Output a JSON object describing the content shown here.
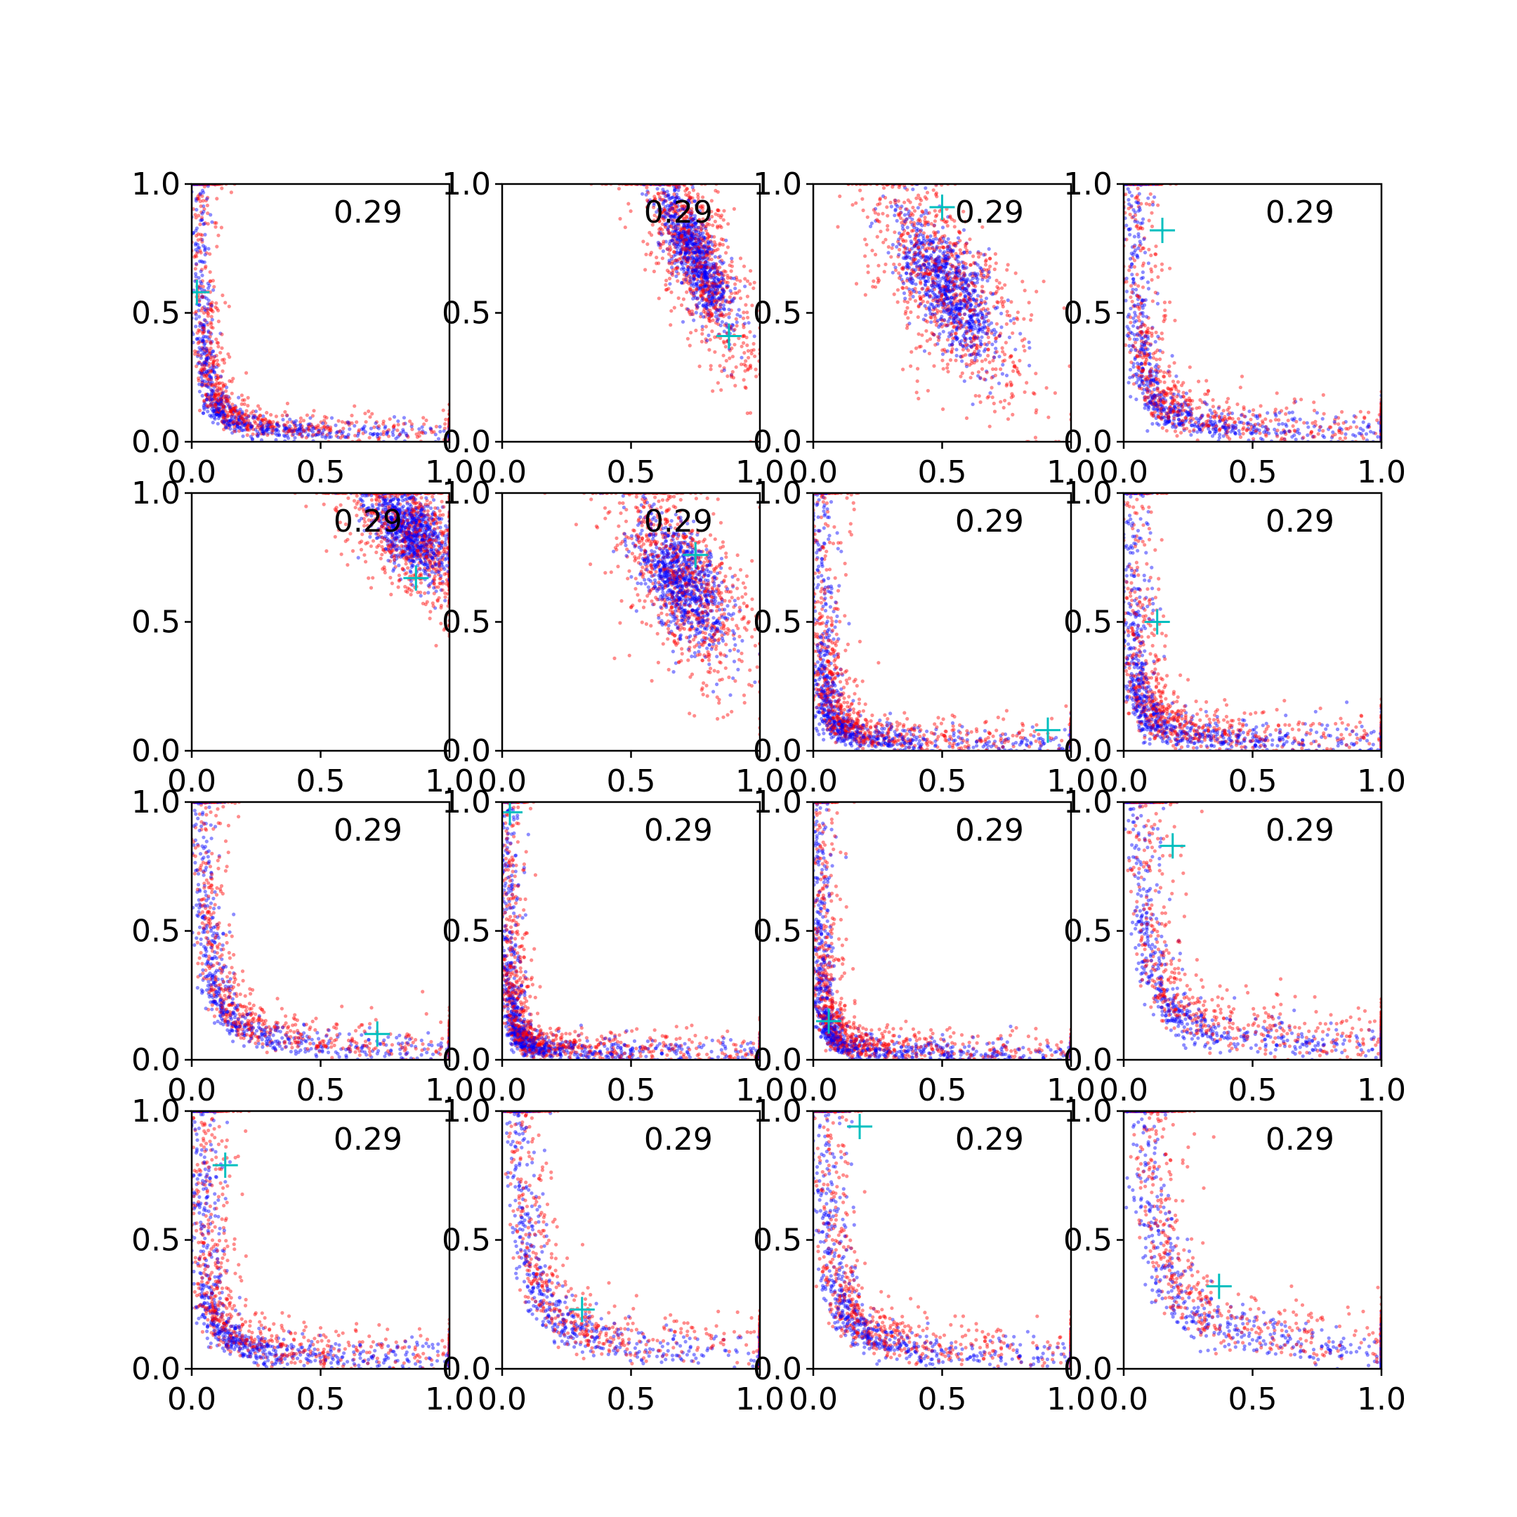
{
  "chart_data": {
    "type": "scatter",
    "layout": {
      "rows": 4,
      "cols": 4
    },
    "xlim": [
      0,
      1
    ],
    "ylim": [
      0,
      1
    ],
    "xticks": [
      "0.0",
      "0.5",
      "1.0"
    ],
    "yticks": [
      "0.0",
      "0.5",
      "1.0"
    ],
    "colors": {
      "series_a": "#0000ff",
      "series_b": "#ff0000",
      "marker": "#00bfbf"
    },
    "panels": [
      {
        "annotation": "0.29",
        "marker": [
          0.02,
          0.58
        ],
        "shape": "L",
        "kx": 0.1,
        "ky": 0.08,
        "spread": 0.05
      },
      {
        "annotation": "0.29",
        "marker": [
          0.88,
          0.41
        ],
        "shape": "blob",
        "cx": 0.75,
        "cy": 0.72,
        "sx": 0.07,
        "sy": 0.14,
        "rho": -0.75
      },
      {
        "annotation": "0.29",
        "marker": [
          0.5,
          0.91
        ],
        "shape": "blob",
        "cx": 0.52,
        "cy": 0.6,
        "sx": 0.1,
        "sy": 0.14,
        "rho": -0.65
      },
      {
        "annotation": "0.29",
        "marker": [
          0.15,
          0.82
        ],
        "shape": "L",
        "kx": 0.14,
        "ky": 0.08,
        "spread": 0.07
      },
      {
        "annotation": "0.29",
        "marker": [
          0.87,
          0.67
        ],
        "shape": "blob",
        "cx": 0.85,
        "cy": 0.85,
        "sx": 0.08,
        "sy": 0.09,
        "rho": -0.5
      },
      {
        "annotation": "0.29",
        "marker": [
          0.75,
          0.76
        ],
        "shape": "blob",
        "cx": 0.7,
        "cy": 0.65,
        "sx": 0.09,
        "sy": 0.13,
        "rho": -0.55
      },
      {
        "annotation": "0.29",
        "marker": [
          0.91,
          0.08
        ],
        "shape": "L",
        "kx": 0.08,
        "ky": 0.05,
        "spread": 0.06
      },
      {
        "annotation": "0.29",
        "marker": [
          0.13,
          0.5
        ],
        "shape": "L",
        "kx": 0.1,
        "ky": 0.06,
        "spread": 0.07
      },
      {
        "annotation": "0.29",
        "marker": [
          0.72,
          0.1
        ],
        "shape": "L",
        "kx": 0.2,
        "ky": 0.08,
        "spread": 0.06
      },
      {
        "annotation": "0.29",
        "marker": [
          0.03,
          0.96
        ],
        "shape": "L",
        "kx": 0.06,
        "ky": 0.05,
        "spread": 0.05
      },
      {
        "annotation": "0.29",
        "marker": [
          0.06,
          0.15
        ],
        "shape": "L",
        "kx": 0.07,
        "ky": 0.05,
        "spread": 0.05
      },
      {
        "annotation": "0.29",
        "marker": [
          0.19,
          0.83
        ],
        "shape": "L",
        "kx": 0.17,
        "ky": 0.14,
        "spread": 0.08
      },
      {
        "annotation": "0.29",
        "marker": [
          0.13,
          0.79
        ],
        "shape": "L",
        "kx": 0.12,
        "ky": 0.08,
        "spread": 0.07
      },
      {
        "annotation": "0.29",
        "marker": [
          0.31,
          0.23
        ],
        "shape": "L",
        "kx": 0.2,
        "ky": 0.13,
        "spread": 0.08
      },
      {
        "annotation": "0.29",
        "marker": [
          0.18,
          0.94
        ],
        "shape": "L",
        "kx": 0.15,
        "ky": 0.11,
        "spread": 0.07
      },
      {
        "annotation": "0.29",
        "marker": [
          0.37,
          0.32
        ],
        "shape": "L",
        "kx": 0.24,
        "ky": 0.16,
        "spread": 0.09
      }
    ]
  }
}
